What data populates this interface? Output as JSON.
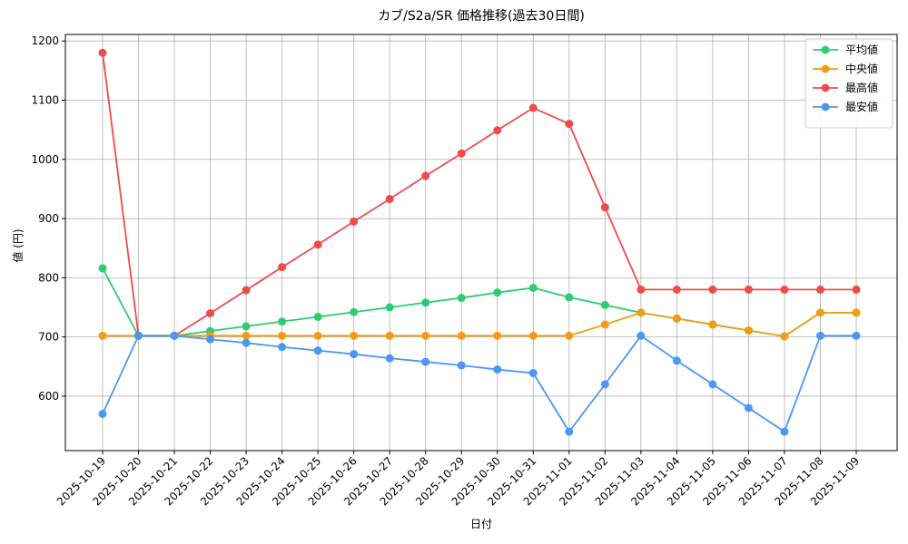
{
  "chart_data": {
    "type": "line",
    "title": "カブ/S2a/SR 価格推移(過去30日間)",
    "x_label": "日付",
    "y_label": "値 (円)",
    "categories": [
      "2025-10-19",
      "2025-10-20",
      "2025-10-21",
      "2025-10-22",
      "2025-10-23",
      "2025-10-24",
      "2025-10-25",
      "2025-10-26",
      "2025-10-27",
      "2025-10-28",
      "2025-10-29",
      "2025-10-30",
      "2025-10-31",
      "2025-11-01",
      "2025-11-02",
      "2025-11-03",
      "2025-11-04",
      "2025-11-05",
      "2025-11-06",
      "2025-11-07",
      "2025-11-08",
      "2025-11-09"
    ],
    "series": [
      {
        "name": "平均値",
        "color": "#2ecc71",
        "values": [
          816,
          702,
          702,
          710,
          718,
          726,
          734,
          742,
          750,
          758,
          766,
          775,
          783,
          767,
          754,
          741,
          731,
          721,
          711,
          701,
          741,
          741
        ]
      },
      {
        "name": "中央値",
        "color": "#f39c12",
        "values": [
          702,
          702,
          702,
          702,
          702,
          702,
          702,
          702,
          702,
          702,
          702,
          702,
          702,
          702,
          721,
          741,
          731,
          721,
          711,
          701,
          741,
          741
        ]
      },
      {
        "name": "最高値",
        "color": "#ef4b4b",
        "values": [
          1180,
          702,
          702,
          740,
          779,
          818,
          856,
          895,
          933,
          972,
          1010,
          1049,
          1087,
          1060,
          919,
          780,
          780,
          780,
          780,
          780,
          780,
          780
        ]
      },
      {
        "name": "最安値",
        "color": "#4a98f3",
        "values": [
          570,
          702,
          702,
          696,
          690,
          683,
          677,
          671,
          664,
          658,
          652,
          645,
          639,
          540,
          620,
          702,
          660,
          620,
          580,
          540,
          702,
          702
        ]
      }
    ],
    "ylim": [
      508,
      1211
    ],
    "yticks": [
      600,
      700,
      800,
      900,
      1000,
      1100,
      1200
    ],
    "grid": true,
    "legend": "upper right"
  }
}
